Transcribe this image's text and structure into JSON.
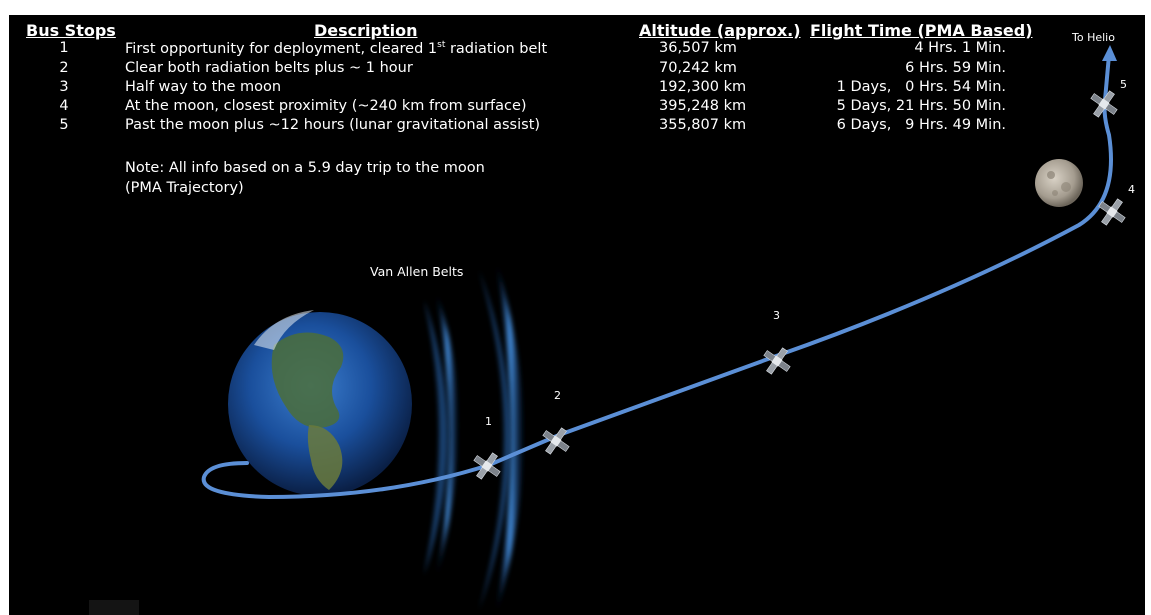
{
  "headers": {
    "bus_stops": "Bus Stops",
    "description": "Description",
    "altitude": "Altitude (approx.)",
    "flight_time": "Flight Time (PMA Based)"
  },
  "rows": [
    {
      "stop": "1",
      "description_pre": "First opportunity for deployment, cleared 1",
      "description_sup": "st",
      "description_post": " radiation belt",
      "altitude": "36,507 km",
      "time": "4 Hrs. 1 Min."
    },
    {
      "stop": "2",
      "description_pre": "Clear both radiation belts plus ~ 1 hour",
      "description_sup": "",
      "description_post": "",
      "altitude": "70,242 km",
      "time": "6 Hrs. 59 Min."
    },
    {
      "stop": "3",
      "description_pre": "Half way to the moon",
      "description_sup": "",
      "description_post": "",
      "altitude": "192,300 km",
      "time": "1 Days,   0 Hrs. 54 Min."
    },
    {
      "stop": "4",
      "description_pre": "At the moon, closest proximity (~240 km from surface)",
      "description_sup": "",
      "description_post": "",
      "altitude": "395,248 km",
      "time": "5 Days, 21 Hrs. 50 Min."
    },
    {
      "stop": "5",
      "description_pre": "Past the moon plus ~12 hours (lunar gravitational assist)",
      "description_sup": "",
      "description_post": "",
      "altitude": "355,807 km",
      "time": "6 Days,   9 Hrs. 49 Min."
    }
  ],
  "note": {
    "line1": "Note: All info based on a 5.9 day trip to the moon",
    "line2": "(PMA Trajectory)"
  },
  "diagram": {
    "van_allen_label": "Van Allen Belts",
    "to_helio_label": "To Helio",
    "stop_labels": [
      "1",
      "2",
      "3",
      "4",
      "5"
    ],
    "colors": {
      "background": "#000000",
      "trajectory": "#5b8fd6",
      "belt": "#3f8fe0",
      "earth_ocean": "#1a4f9c",
      "moon": "#b9b2a6"
    }
  }
}
